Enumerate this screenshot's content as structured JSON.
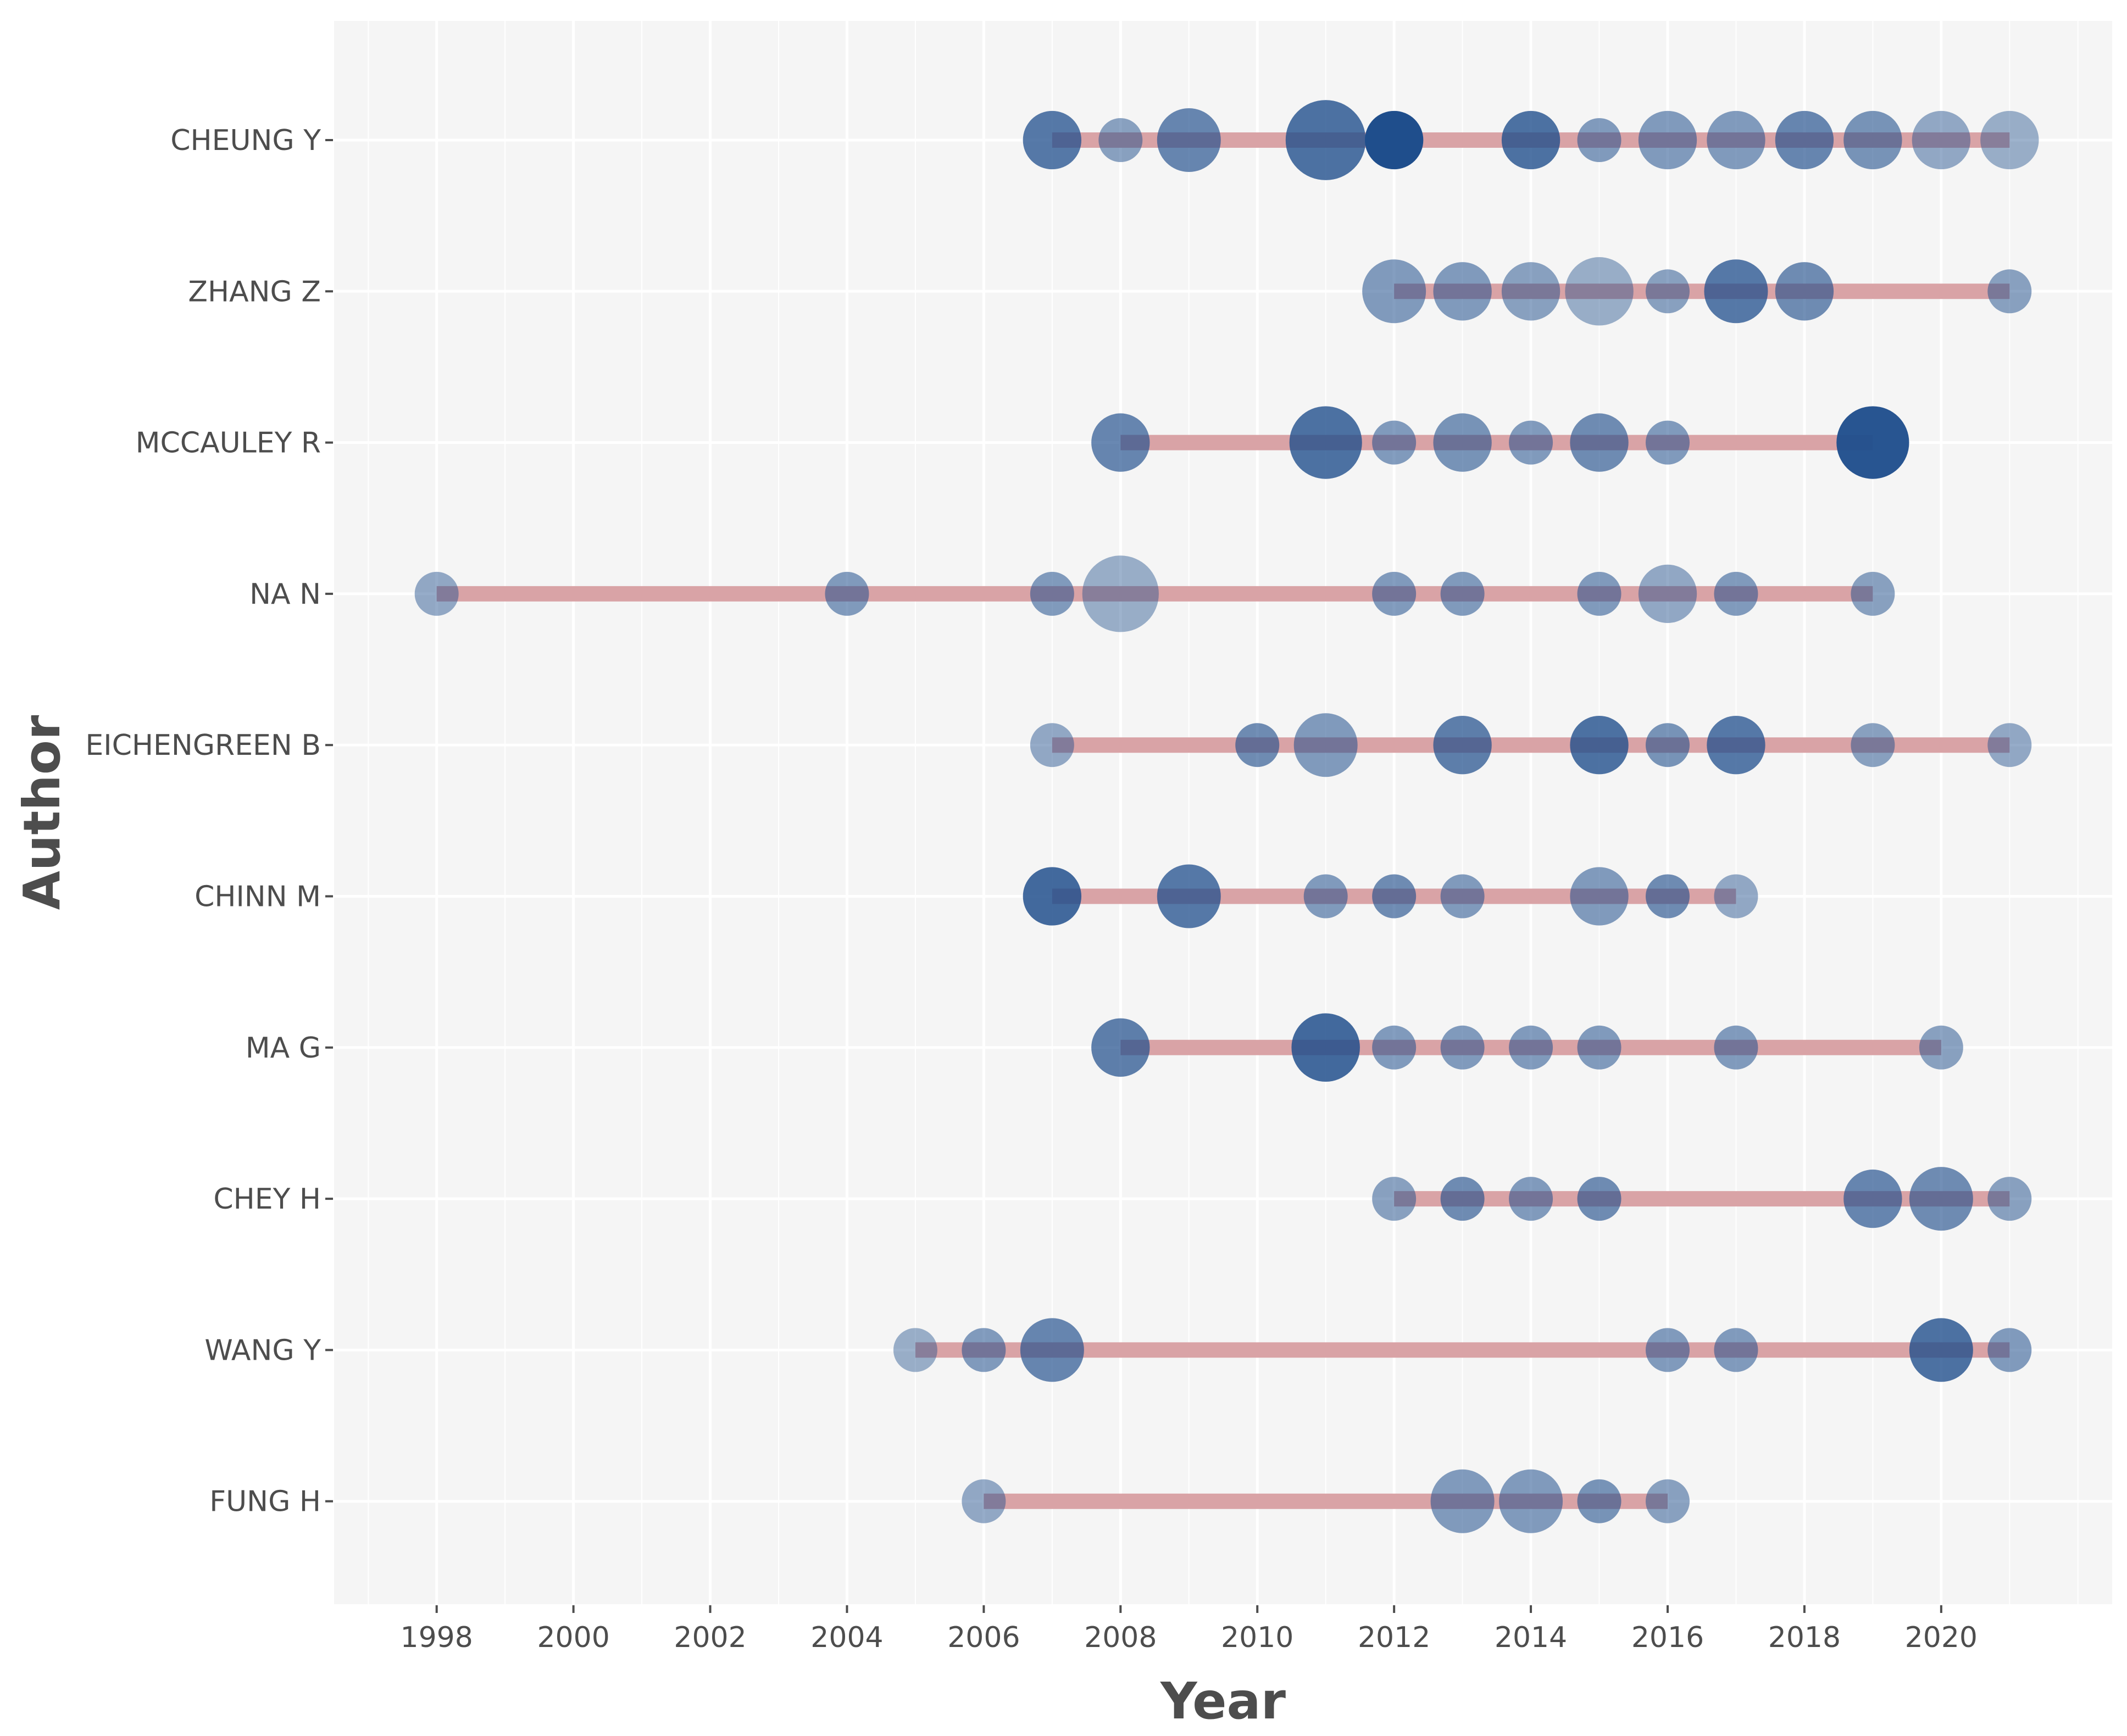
{
  "chart_data": {
    "type": "scatter",
    "subtype": "author-production-over-time",
    "title": "",
    "xlabel": "Year",
    "ylabel": "Author",
    "xlim": [
      1996.5,
      2022.5
    ],
    "x_ticks": [
      1998,
      2000,
      2002,
      2004,
      2006,
      2008,
      2010,
      2012,
      2014,
      2016,
      2018,
      2020
    ],
    "x_tick_labels": [
      "1998",
      "2000",
      "2002",
      "2004",
      "2006",
      "2008",
      "2010",
      "2012",
      "2014",
      "2016",
      "2018",
      "2020"
    ],
    "grid": true,
    "line_color": "#d9a3a6",
    "point_color": "#1f4e8c",
    "background_color": "#f5f5f5",
    "grid_color": "#ffffff",
    "authors": [
      {
        "name": "CHEUNG Y",
        "line": [
          2007,
          2021
        ],
        "points": [
          {
            "year": 2007,
            "size": 3,
            "intensity": 0.7
          },
          {
            "year": 2008,
            "size": 1,
            "intensity": 0.4
          },
          {
            "year": 2009,
            "size": 4,
            "intensity": 0.6
          },
          {
            "year": 2011,
            "size": 8,
            "intensity": 0.75
          },
          {
            "year": 2012,
            "size": 3,
            "intensity": 1.0
          },
          {
            "year": 2014,
            "size": 3,
            "intensity": 0.75
          },
          {
            "year": 2015,
            "size": 1,
            "intensity": 0.45
          },
          {
            "year": 2016,
            "size": 3,
            "intensity": 0.45
          },
          {
            "year": 2017,
            "size": 3,
            "intensity": 0.45
          },
          {
            "year": 2018,
            "size": 3,
            "intensity": 0.6
          },
          {
            "year": 2019,
            "size": 3,
            "intensity": 0.5
          },
          {
            "year": 2020,
            "size": 3,
            "intensity": 0.35
          },
          {
            "year": 2021,
            "size": 3,
            "intensity": 0.3
          }
        ]
      },
      {
        "name": "ZHANG Z",
        "line": [
          2012,
          2021
        ],
        "points": [
          {
            "year": 2012,
            "size": 4,
            "intensity": 0.45
          },
          {
            "year": 2013,
            "size": 3,
            "intensity": 0.45
          },
          {
            "year": 2014,
            "size": 3,
            "intensity": 0.4
          },
          {
            "year": 2015,
            "size": 5,
            "intensity": 0.3
          },
          {
            "year": 2016,
            "size": 1,
            "intensity": 0.4
          },
          {
            "year": 2017,
            "size": 4,
            "intensity": 0.7
          },
          {
            "year": 2018,
            "size": 3,
            "intensity": 0.55
          },
          {
            "year": 2021,
            "size": 1,
            "intensity": 0.4
          }
        ]
      },
      {
        "name": "MCCAULEY R",
        "line": [
          2008,
          2019
        ],
        "points": [
          {
            "year": 2008,
            "size": 3,
            "intensity": 0.6
          },
          {
            "year": 2011,
            "size": 6,
            "intensity": 0.75
          },
          {
            "year": 2012,
            "size": 1,
            "intensity": 0.45
          },
          {
            "year": 2013,
            "size": 3,
            "intensity": 0.5
          },
          {
            "year": 2014,
            "size": 1,
            "intensity": 0.45
          },
          {
            "year": 2015,
            "size": 3,
            "intensity": 0.55
          },
          {
            "year": 2016,
            "size": 1,
            "intensity": 0.45
          },
          {
            "year": 2019,
            "size": 6,
            "intensity": 0.95
          }
        ]
      },
      {
        "name": "NA N",
        "line": [
          1998,
          2019
        ],
        "points": [
          {
            "year": 1998,
            "size": 1,
            "intensity": 0.35
          },
          {
            "year": 2004,
            "size": 1,
            "intensity": 0.45
          },
          {
            "year": 2007,
            "size": 1,
            "intensity": 0.45
          },
          {
            "year": 2008,
            "size": 7,
            "intensity": 0.3
          },
          {
            "year": 2012,
            "size": 1,
            "intensity": 0.45
          },
          {
            "year": 2013,
            "size": 1,
            "intensity": 0.45
          },
          {
            "year": 2015,
            "size": 1,
            "intensity": 0.45
          },
          {
            "year": 2016,
            "size": 3,
            "intensity": 0.35
          },
          {
            "year": 2017,
            "size": 1,
            "intensity": 0.45
          },
          {
            "year": 2019,
            "size": 1,
            "intensity": 0.4
          }
        ]
      },
      {
        "name": "EICHENGREEN B",
        "line": [
          2007,
          2021
        ],
        "points": [
          {
            "year": 2007,
            "size": 1,
            "intensity": 0.35
          },
          {
            "year": 2010,
            "size": 1,
            "intensity": 0.55
          },
          {
            "year": 2011,
            "size": 4,
            "intensity": 0.45
          },
          {
            "year": 2013,
            "size": 3,
            "intensity": 0.65
          },
          {
            "year": 2015,
            "size": 3,
            "intensity": 0.75
          },
          {
            "year": 2016,
            "size": 1,
            "intensity": 0.5
          },
          {
            "year": 2017,
            "size": 3,
            "intensity": 0.7
          },
          {
            "year": 2019,
            "size": 1,
            "intensity": 0.4
          },
          {
            "year": 2021,
            "size": 1,
            "intensity": 0.35
          }
        ]
      },
      {
        "name": "CHINN M",
        "line": [
          2007,
          2017
        ],
        "points": [
          {
            "year": 2007,
            "size": 3,
            "intensity": 0.8
          },
          {
            "year": 2009,
            "size": 4,
            "intensity": 0.7
          },
          {
            "year": 2011,
            "size": 1,
            "intensity": 0.45
          },
          {
            "year": 2012,
            "size": 1,
            "intensity": 0.55
          },
          {
            "year": 2013,
            "size": 1,
            "intensity": 0.45
          },
          {
            "year": 2015,
            "size": 3,
            "intensity": 0.45
          },
          {
            "year": 2016,
            "size": 1,
            "intensity": 0.55
          },
          {
            "year": 2017,
            "size": 1,
            "intensity": 0.35
          }
        ]
      },
      {
        "name": "MA G",
        "line": [
          2008,
          2020
        ],
        "points": [
          {
            "year": 2008,
            "size": 3,
            "intensity": 0.65
          },
          {
            "year": 2011,
            "size": 5,
            "intensity": 0.8
          },
          {
            "year": 2012,
            "size": 1,
            "intensity": 0.45
          },
          {
            "year": 2013,
            "size": 1,
            "intensity": 0.45
          },
          {
            "year": 2014,
            "size": 1,
            "intensity": 0.45
          },
          {
            "year": 2015,
            "size": 1,
            "intensity": 0.45
          },
          {
            "year": 2017,
            "size": 1,
            "intensity": 0.45
          },
          {
            "year": 2020,
            "size": 1,
            "intensity": 0.4
          }
        ]
      },
      {
        "name": "CHEY H",
        "line": [
          2012,
          2021
        ],
        "points": [
          {
            "year": 2012,
            "size": 1,
            "intensity": 0.4
          },
          {
            "year": 2013,
            "size": 1,
            "intensity": 0.55
          },
          {
            "year": 2014,
            "size": 1,
            "intensity": 0.45
          },
          {
            "year": 2015,
            "size": 1,
            "intensity": 0.55
          },
          {
            "year": 2019,
            "size": 3,
            "intensity": 0.6
          },
          {
            "year": 2020,
            "size": 4,
            "intensity": 0.55
          },
          {
            "year": 2021,
            "size": 1,
            "intensity": 0.4
          }
        ]
      },
      {
        "name": "WANG Y",
        "line": [
          2005,
          2021
        ],
        "points": [
          {
            "year": 2005,
            "size": 1,
            "intensity": 0.3
          },
          {
            "year": 2006,
            "size": 1,
            "intensity": 0.45
          },
          {
            "year": 2007,
            "size": 4,
            "intensity": 0.6
          },
          {
            "year": 2016,
            "size": 1,
            "intensity": 0.45
          },
          {
            "year": 2017,
            "size": 1,
            "intensity": 0.45
          },
          {
            "year": 2020,
            "size": 4,
            "intensity": 0.75
          },
          {
            "year": 2021,
            "size": 1,
            "intensity": 0.45
          }
        ]
      },
      {
        "name": "FUNG H",
        "line": [
          2006,
          2016
        ],
        "points": [
          {
            "year": 2006,
            "size": 1,
            "intensity": 0.35
          },
          {
            "year": 2013,
            "size": 4,
            "intensity": 0.45
          },
          {
            "year": 2014,
            "size": 4,
            "intensity": 0.45
          },
          {
            "year": 2015,
            "size": 1,
            "intensity": 0.5
          },
          {
            "year": 2016,
            "size": 1,
            "intensity": 0.4
          }
        ]
      }
    ]
  }
}
